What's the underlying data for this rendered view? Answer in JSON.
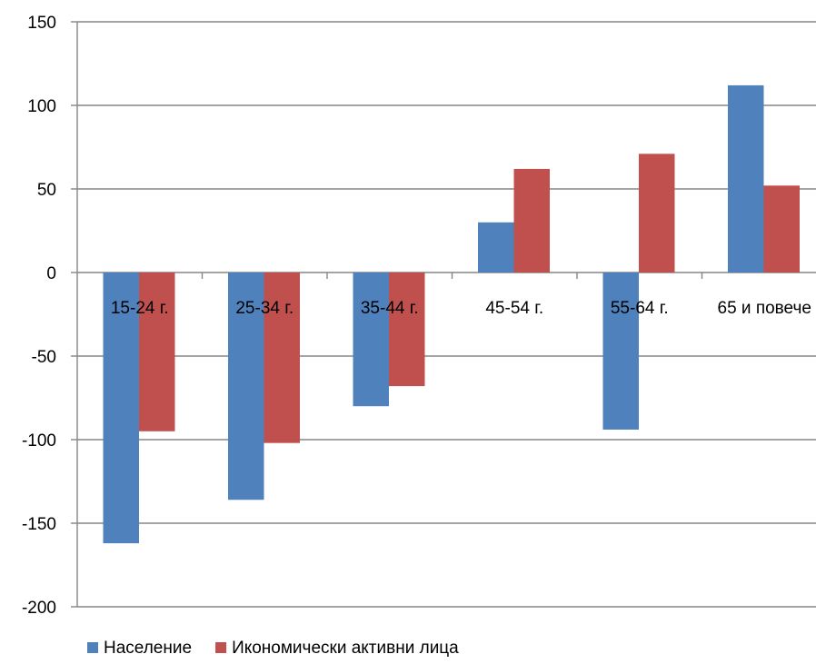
{
  "chart_data": {
    "type": "bar",
    "title": "",
    "xlabel": "",
    "ylabel": "",
    "categories": [
      "15-24 г.",
      "25-34 г.",
      "35-44 г.",
      "45-54 г.",
      "55-64 г.",
      "65 и повече"
    ],
    "series": [
      {
        "name": "Население",
        "color": "#4F81BD",
        "values": [
          -162,
          -136,
          -80,
          30,
          -94,
          112
        ]
      },
      {
        "name": "Икономически активни лица",
        "color": "#C0504D",
        "values": [
          -95,
          -102,
          -68,
          62,
          71,
          52
        ]
      }
    ],
    "ylim": [
      -200,
      150
    ],
    "yticks": [
      150,
      100,
      50,
      0,
      -50,
      -100,
      -150,
      -200
    ],
    "grid": true,
    "legend_position": "bottom-left"
  }
}
